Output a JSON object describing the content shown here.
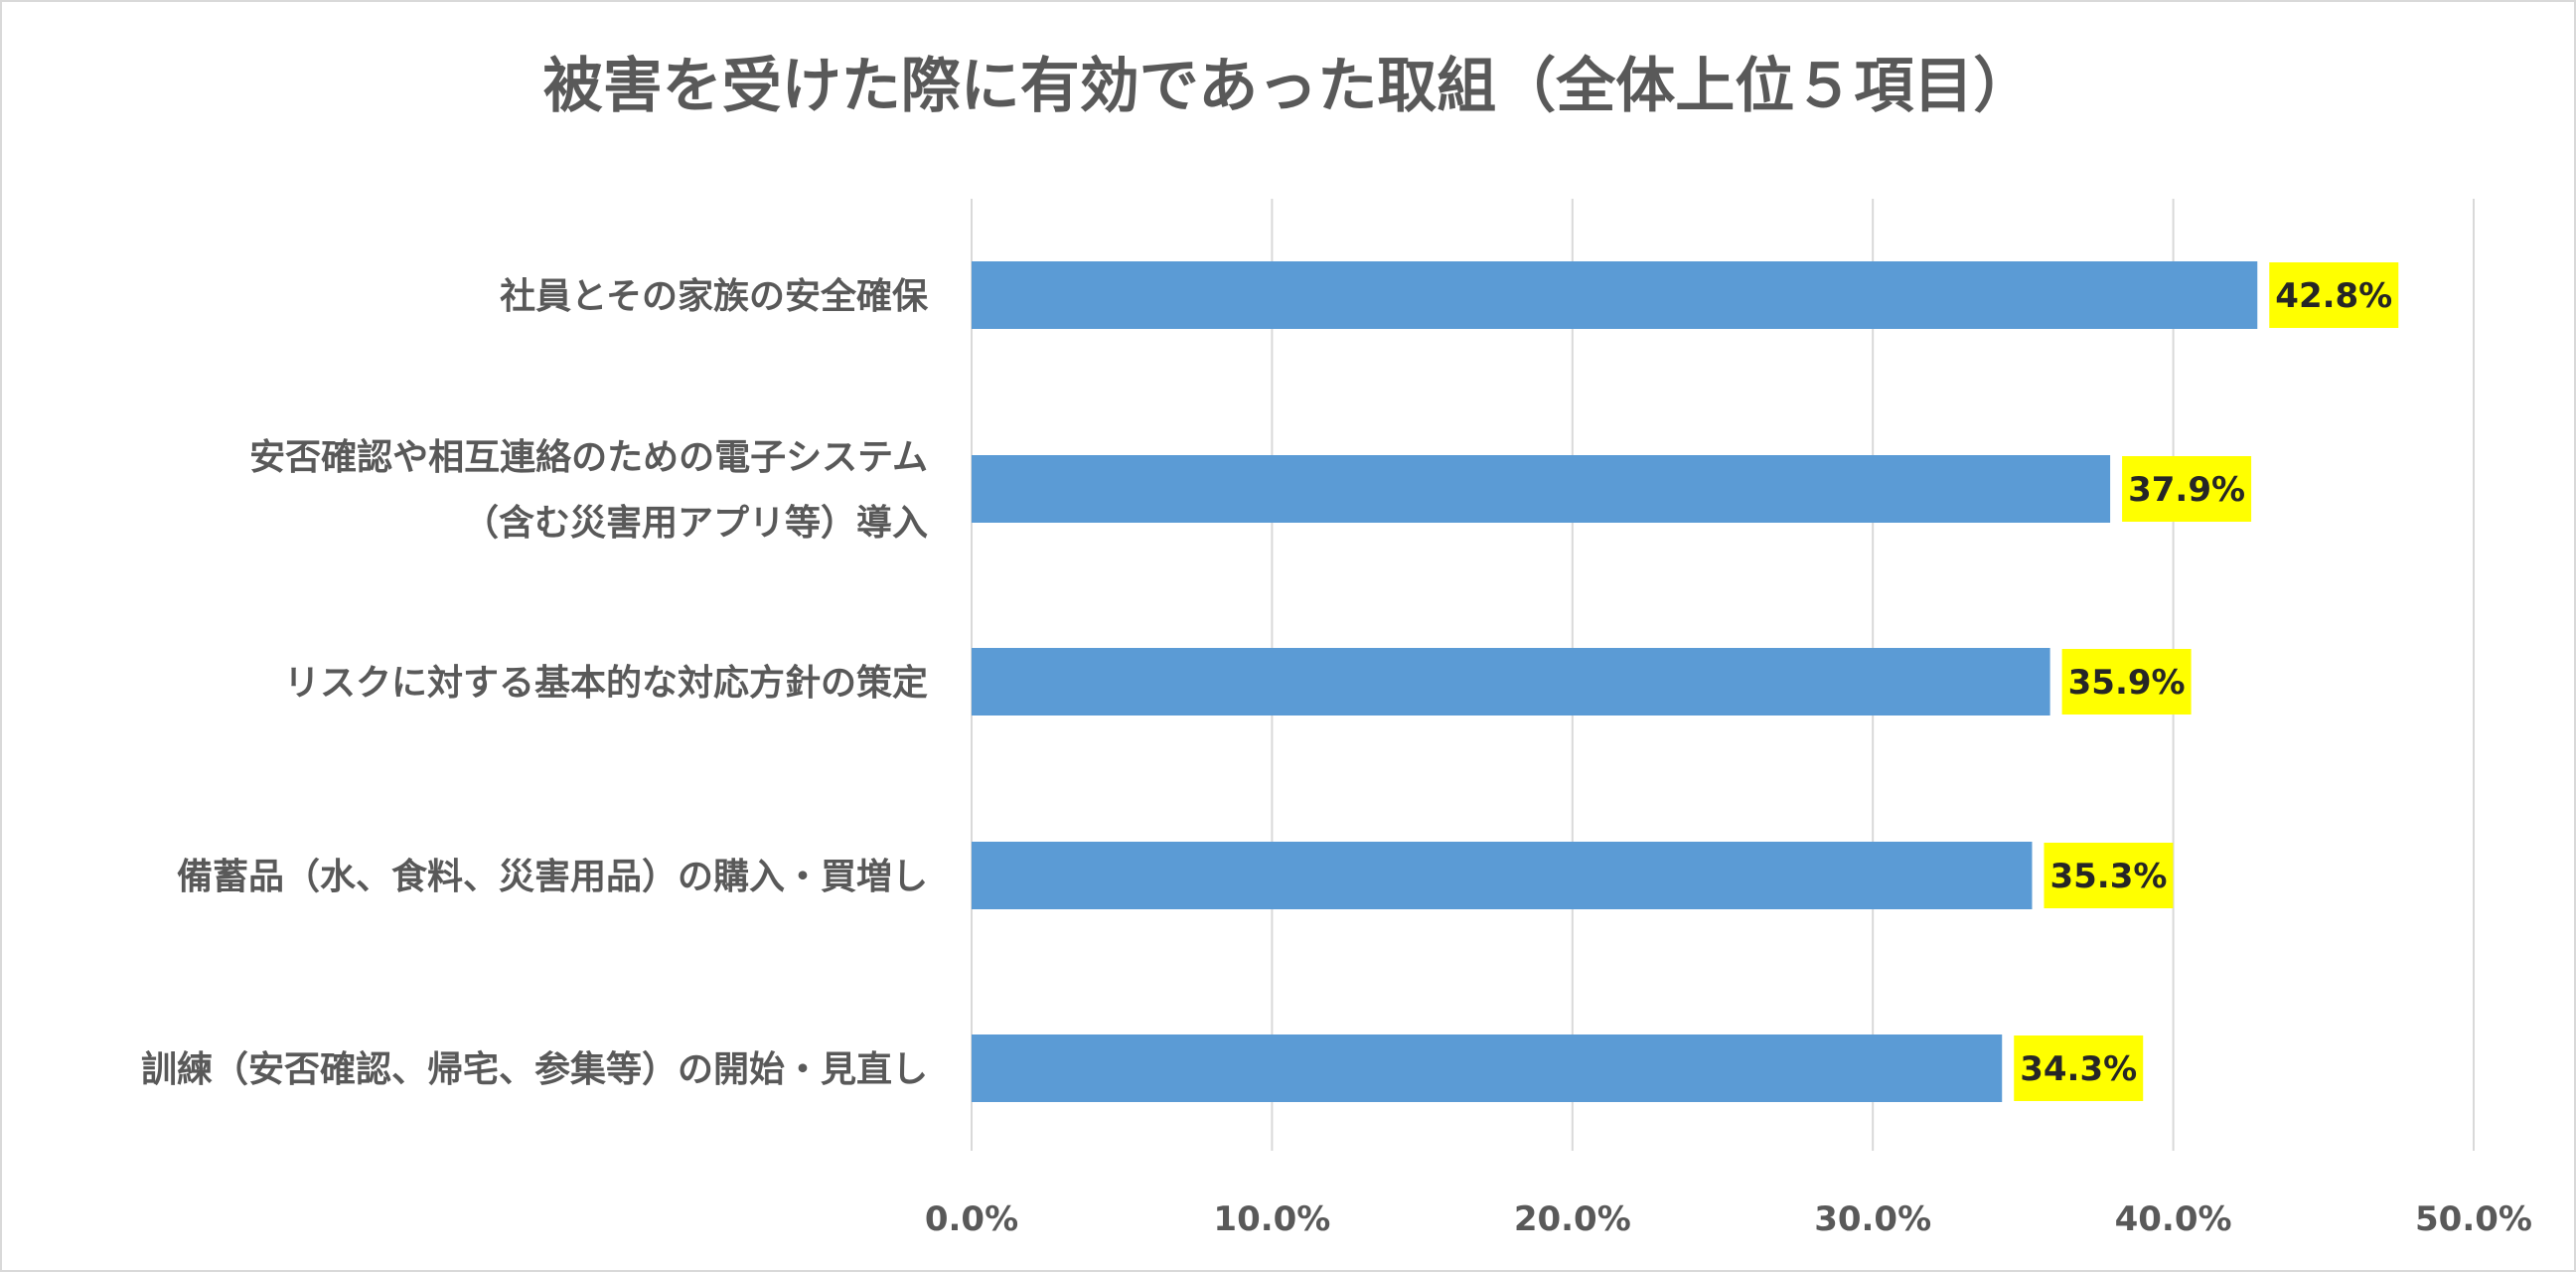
{
  "chart_data": {
    "type": "bar",
    "orientation": "horizontal",
    "title": "被害を受けた際に有効であった取組（全体上位５項目）",
    "categories": [
      [
        "社員とその家族の安全確保"
      ],
      [
        "安否確認や相互連絡のための電子システム",
        "（含む災害用アプリ等）導入"
      ],
      [
        "リスクに対する基本的な対応方針の策定"
      ],
      [
        "備蓄品（水、食料、災害用品）の購入・買増し"
      ],
      [
        "訓練（安否確認、帰宅、参集等）の開始・見直し"
      ]
    ],
    "values": [
      42.8,
      37.9,
      35.9,
      35.3,
      34.3
    ],
    "value_labels": [
      "42.8%",
      "37.9%",
      "35.9%",
      "35.3%",
      "34.3%"
    ],
    "xlim": [
      0,
      50
    ],
    "x_ticks": [
      0,
      10,
      20,
      30,
      40,
      50
    ],
    "x_tick_labels": [
      "0.0%",
      "10.0%",
      "20.0%",
      "30.0%",
      "40.0%",
      "50.0%"
    ],
    "xlabel": "",
    "ylabel": "",
    "grid": "vertical",
    "legend": "none",
    "colors": {
      "bar": "#5b9bd5",
      "label_background": "#ffff00",
      "gridline": "#d9d9d9",
      "text": "#595959"
    }
  }
}
